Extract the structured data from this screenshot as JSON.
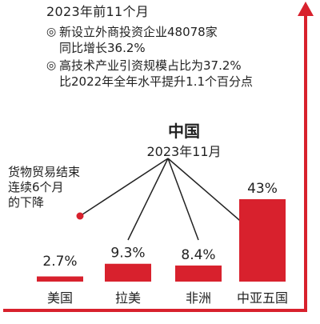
{
  "info": {
    "title": "2023年前11个月",
    "bullets": [
      {
        "icon": "double-circle-icon",
        "lines": [
          "新设立外商投资企业48078家",
          "同比增长36.2%"
        ]
      },
      {
        "icon": "double-circle-icon",
        "lines": [
          "高技术产业引资规模占比为37.2%",
          "比2022年全年水平提升1.1个百分点"
        ]
      }
    ]
  },
  "chart_data": {
    "type": "bar",
    "title": "中国",
    "subtitle": "2023年11月",
    "categories": [
      "美国",
      "拉美",
      "非洲",
      "中亚五国"
    ],
    "values": [
      2.7,
      9.3,
      8.4,
      43
    ],
    "value_labels": [
      "2.7%",
      "9.3%",
      "8.4%",
      "43%"
    ],
    "unit": "%",
    "annotation": {
      "lines": [
        "货物贸易结束",
        "连续6个月",
        "的下降"
      ],
      "target_category": "美国"
    },
    "colors": {
      "bar": "#d8212d",
      "axis": "#d8212d",
      "leader": "#222222"
    }
  }
}
